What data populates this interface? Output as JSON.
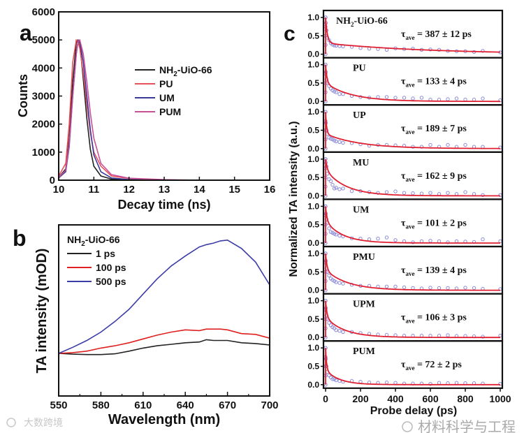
{
  "chart_data": [
    {
      "panel": "a",
      "type": "line",
      "xlabel": "Decay time (ns)",
      "ylabel": "Counts",
      "xlim": [
        10,
        16
      ],
      "ylim": [
        0,
        6000
      ],
      "xticks": [
        "10",
        "11",
        "12",
        "13",
        "14",
        "15",
        "16"
      ],
      "yticks": [
        "0",
        "1000",
        "2000",
        "3000",
        "4000",
        "5000",
        "6000"
      ],
      "legend_placement": "center-right",
      "x": [
        10.0,
        10.2,
        10.3,
        10.4,
        10.5,
        10.55,
        10.6,
        10.7,
        10.8,
        10.9,
        11.0,
        11.2,
        11.5,
        12,
        13,
        14,
        16
      ],
      "series": [
        {
          "name": {
            "main": "NH",
            "sub": "2",
            "rest": "-UiO-66"
          },
          "color": "#222222",
          "values": [
            100,
            400,
            1500,
            3500,
            4900,
            5000,
            4900,
            3600,
            2200,
            1100,
            500,
            150,
            40,
            10,
            0,
            0,
            0
          ]
        },
        {
          "name": {
            "main": "PU",
            "sub": "",
            "rest": ""
          },
          "color": "#e8505a",
          "values": [
            150,
            600,
            2000,
            4200,
            5000,
            4950,
            4700,
            3800,
            2700,
            1700,
            1000,
            500,
            150,
            60,
            10,
            0,
            0
          ]
        },
        {
          "name": {
            "main": "UM",
            "sub": "",
            "rest": ""
          },
          "color": "#3a3a9a",
          "values": [
            80,
            300,
            1200,
            3000,
            4500,
            4950,
            4950,
            4200,
            3000,
            1800,
            900,
            300,
            80,
            20,
            0,
            0,
            0
          ]
        },
        {
          "name": {
            "main": "PUM",
            "sub": "",
            "rest": ""
          },
          "color": "#c8509a",
          "values": [
            100,
            350,
            1300,
            3000,
            4500,
            4950,
            5000,
            4500,
            3500,
            2400,
            1500,
            600,
            200,
            70,
            20,
            0,
            0
          ]
        }
      ]
    },
    {
      "panel": "b",
      "type": "line",
      "xlabel": "Wavelength (nm)",
      "ylabel": "TA intensity (mOD)",
      "xlim": [
        550,
        700
      ],
      "ylim": [
        -5.6,
        16.9
      ],
      "xticks": [
        "550",
        "580",
        "610",
        "640",
        "670",
        "700"
      ],
      "legend_title": {
        "main": "NH",
        "sub": "2",
        "rest": "-UiO-66"
      },
      "legend_placement": "top-left",
      "x": [
        550,
        560,
        570,
        580,
        590,
        600,
        610,
        620,
        630,
        640,
        650,
        655,
        660,
        665,
        670,
        680,
        690,
        700
      ],
      "series": [
        {
          "name": "1 ps",
          "color": "#222222",
          "values": [
            0,
            -0.1,
            -0.15,
            -0.15,
            -0.05,
            0.3,
            0.7,
            1.0,
            1.2,
            1.4,
            1.5,
            1.8,
            1.7,
            1.7,
            1.7,
            1.4,
            1.3,
            1.1
          ]
        },
        {
          "name": "100 ps",
          "color": "#e02020",
          "values": [
            0,
            0.1,
            0.3,
            0.7,
            1.0,
            1.4,
            1.9,
            2.4,
            2.8,
            3.1,
            3.0,
            3.2,
            3.2,
            3.2,
            3.1,
            2.6,
            2.5,
            2.0
          ]
        },
        {
          "name": "500 ps",
          "color": "#3c3ca8",
          "values": [
            0,
            0.8,
            1.7,
            2.8,
            4.2,
            5.8,
            7.8,
            9.8,
            11.5,
            12.8,
            14.0,
            14.3,
            14.5,
            14.8,
            14.9,
            13.8,
            12.0,
            9.0
          ]
        }
      ]
    },
    {
      "panel": "c",
      "type": "scatter",
      "xlabel": "Probe delay (ps)",
      "ylabel": "Normalized TA intensity (a.u.)",
      "xlim": [
        0,
        1000
      ],
      "ylim": [
        0,
        1
      ],
      "xticks": [
        "0",
        "200",
        "400",
        "600",
        "800",
        "1000"
      ],
      "yticks": [
        "0.0",
        "0.5",
        "1.0"
      ],
      "scatter_color": "#8a8ad8",
      "fit_color": "#e02030",
      "t": [
        0,
        2,
        5,
        10,
        20,
        30,
        40,
        50,
        60,
        80,
        100,
        150,
        200,
        250,
        300,
        350,
        400,
        450,
        500,
        550,
        600,
        650,
        700,
        750,
        800,
        850,
        900,
        1000
      ],
      "subplots": [
        {
          "name": {
            "main": "NH",
            "sub": "2",
            "rest": "-UiO-66"
          },
          "tau": {
            "sym": "τ",
            "sub": "ave",
            "rest": " = 387 ± 12 ps"
          },
          "fit": {
            "a": 0.7,
            "fast": 10,
            "slow": 600
          },
          "values": [
            1.0,
            0.85,
            0.65,
            0.45,
            0.38,
            0.3,
            0.26,
            0.24,
            0.23,
            0.22,
            0.21,
            0.2,
            0.17,
            0.15,
            0.14,
            0.12,
            0.16,
            0.14,
            0.15,
            0.12,
            0.13,
            0.12,
            0.09,
            0.08,
            0.08,
            0.06,
            0.09,
            0.05
          ]
        },
        {
          "name": {
            "main": "PU",
            "sub": "",
            "rest": ""
          },
          "tau": {
            "sym": "τ",
            "sub": "ave",
            "rest": " = 133 ± 4 ps"
          },
          "fit": {
            "a": 0.5,
            "fast": 8,
            "slow": 150
          },
          "values": [
            1.0,
            0.8,
            0.6,
            0.5,
            0.42,
            0.35,
            0.3,
            0.27,
            0.25,
            0.2,
            0.2,
            0.15,
            0.12,
            0.1,
            0.12,
            0.12,
            0.1,
            0.1,
            0.08,
            0.1,
            0.05,
            0.05,
            0.06,
            0.08,
            0.05,
            0.05,
            0.08,
            0.03
          ]
        },
        {
          "name": {
            "main": "UP",
            "sub": "",
            "rest": ""
          },
          "tau": {
            "sym": "τ",
            "sub": "ave",
            "rest": " = 189 ± 7 ps"
          },
          "fit": {
            "a": 0.6,
            "fast": 6,
            "slow": 200
          },
          "values": [
            1.0,
            0.7,
            0.5,
            0.4,
            0.3,
            0.27,
            0.25,
            0.22,
            0.2,
            0.18,
            0.16,
            0.15,
            0.12,
            0.08,
            0.1,
            0.1,
            0.09,
            0.08,
            0.05,
            0.05,
            0.1,
            0.05,
            0.1,
            0.05,
            0.1,
            0.05,
            0.05,
            0.03
          ]
        },
        {
          "name": {
            "main": "MU",
            "sub": "",
            "rest": ""
          },
          "tau": {
            "sym": "τ",
            "sub": "ave",
            "rest": " = 162 ± 9 ps"
          },
          "fit": {
            "a": 0.3,
            "fast": 10,
            "slow": 120
          },
          "values": [
            1.0,
            0.9,
            0.8,
            0.6,
            0.45,
            0.4,
            0.3,
            0.2,
            0.22,
            0.18,
            0.2,
            0.13,
            0.13,
            0.1,
            0.08,
            0.1,
            0.12,
            0.08,
            0.07,
            0.06,
            0.08,
            0.05,
            0.08,
            0.05,
            0.1,
            0.05,
            0.02,
            0.02
          ]
        },
        {
          "name": {
            "main": "UM",
            "sub": "",
            "rest": ""
          },
          "tau": {
            "sym": "τ",
            "sub": "ave",
            "rest": " = 101 ± 2 ps"
          },
          "fit": {
            "a": 0.4,
            "fast": 8,
            "slow": 100
          },
          "values": [
            1.0,
            0.8,
            0.65,
            0.55,
            0.4,
            0.3,
            0.28,
            0.25,
            0.23,
            0.2,
            0.18,
            0.13,
            0.12,
            0.1,
            0.12,
            0.15,
            0.08,
            0.05,
            0.02,
            0.05,
            0.06,
            0.05,
            0.02,
            0.05,
            0.04,
            0.03,
            0.1,
            0.05
          ]
        },
        {
          "name": {
            "main": "PMU",
            "sub": "",
            "rest": ""
          },
          "tau": {
            "sym": "τ",
            "sub": "ave",
            "rest": " = 139 ± 4 ps"
          },
          "fit": {
            "a": 0.45,
            "fast": 8,
            "slow": 130
          },
          "values": [
            1.0,
            0.8,
            0.6,
            0.5,
            0.4,
            0.32,
            0.28,
            0.25,
            0.22,
            0.2,
            0.18,
            0.15,
            0.12,
            0.12,
            0.1,
            0.1,
            0.1,
            0.08,
            0.06,
            0.05,
            0.07,
            0.06,
            0.06,
            0.05,
            0.07,
            0.06,
            0.04,
            0.03
          ]
        },
        {
          "name": {
            "main": "UPM",
            "sub": "",
            "rest": ""
          },
          "tau": {
            "sym": "τ",
            "sub": "ave",
            "rest": " = 106 ± 3 ps"
          },
          "fit": {
            "a": 0.45,
            "fast": 8,
            "slow": 110
          },
          "values": [
            1.0,
            0.8,
            0.6,
            0.5,
            0.4,
            0.33,
            0.28,
            0.25,
            0.2,
            0.18,
            0.15,
            0.15,
            0.12,
            0.1,
            0.08,
            0.07,
            0.06,
            0.05,
            0.05,
            0.05,
            0.05,
            0.05,
            0.06,
            0.04,
            0.04,
            0.03,
            0.02,
            0.05
          ]
        },
        {
          "name": {
            "main": "PUM",
            "sub": "",
            "rest": ""
          },
          "tau": {
            "sym": "τ",
            "sub": "ave",
            "rest": " = 72 ± 2 ps"
          },
          "fit": {
            "a": 0.6,
            "fast": 6,
            "slow": 80
          },
          "values": [
            1.0,
            0.7,
            0.5,
            0.35,
            0.25,
            0.2,
            0.15,
            0.15,
            0.12,
            0.1,
            0.08,
            0.1,
            0.08,
            0.06,
            0.05,
            0.06,
            0.05,
            0.03,
            0.03,
            0.03,
            0.02,
            0.05,
            0.04,
            0.05,
            0.04,
            0.04,
            0.03,
            0.02
          ]
        }
      ]
    }
  ],
  "panel_labels": {
    "a": "a",
    "b": "b",
    "c": "c"
  },
  "watermarks": {
    "left": "大数跨境",
    "right": "材料科学与工程"
  }
}
